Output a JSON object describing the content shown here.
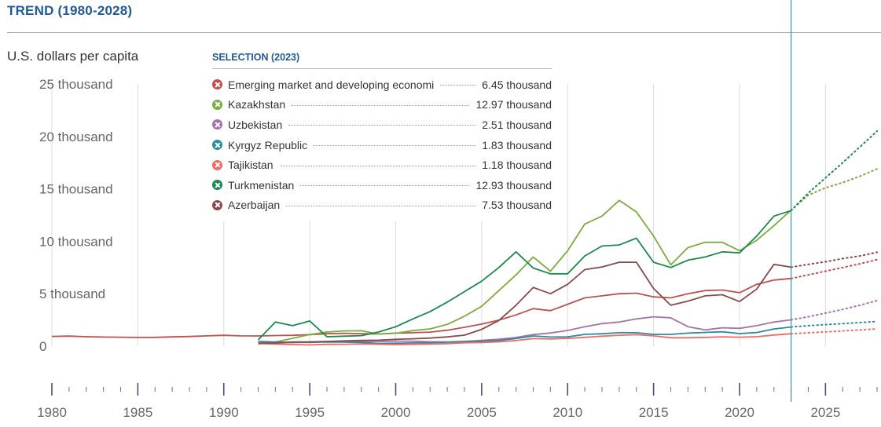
{
  "header": {
    "title": "TREND (1980-2028)"
  },
  "legend": {
    "title": "SELECTION (2023)"
  },
  "chart_data": {
    "type": "line",
    "ylabel": "U.S. dollars per capita",
    "xlim": [
      1980,
      2028
    ],
    "ylim": [
      0,
      25000
    ],
    "x_ticks": [
      1980,
      1985,
      1990,
      1995,
      2000,
      2005,
      2010,
      2015,
      2020,
      2025
    ],
    "y_ticks": [
      {
        "value": 0,
        "label": "0"
      },
      {
        "value": 5000,
        "label": "5 thousand"
      },
      {
        "value": 10000,
        "label": "10 thousand"
      },
      {
        "value": 15000,
        "label": "15 thousand"
      },
      {
        "value": 20000,
        "label": "20 thousand"
      },
      {
        "value": 25000,
        "label": "25 thousand"
      }
    ],
    "grid": "vertical",
    "legend_position": "top-center",
    "projection_start": 2023,
    "series": [
      {
        "name": "Emerging market and developing economi",
        "legend_value": "6.45 thousand",
        "color": "#c0504d",
        "x": [
          1980,
          1981,
          1982,
          1983,
          1984,
          1985,
          1986,
          1987,
          1988,
          1989,
          1990,
          1991,
          1992,
          1993,
          1994,
          1995,
          1996,
          1997,
          1998,
          1999,
          2000,
          2001,
          2002,
          2003,
          2004,
          2005,
          2006,
          2007,
          2008,
          2009,
          2010,
          2011,
          2012,
          2013,
          2014,
          2015,
          2016,
          2017,
          2018,
          2019,
          2020,
          2021,
          2022,
          2023
        ],
        "values": [
          930,
          960,
          900,
          870,
          850,
          830,
          840,
          880,
          920,
          980,
          1030,
          980,
          970,
          1010,
          1030,
          1100,
          1180,
          1230,
          1180,
          1160,
          1240,
          1280,
          1340,
          1520,
          1800,
          2100,
          2480,
          2980,
          3580,
          3380,
          4000,
          4600,
          4800,
          5000,
          5050,
          4700,
          4600,
          5000,
          5300,
          5350,
          5100,
          5900,
          6300,
          6450
        ],
        "proj_x": [
          2023,
          2024,
          2025,
          2026,
          2027,
          2028
        ],
        "proj_values": [
          6450,
          6800,
          7150,
          7500,
          7850,
          8250
        ]
      },
      {
        "name": "Kazakhstan",
        "legend_value": "12.97 thousand",
        "color": "#7aad3f",
        "x": [
          1992,
          1993,
          1994,
          1995,
          1996,
          1997,
          1998,
          1999,
          2000,
          2001,
          2002,
          2003,
          2004,
          2005,
          2006,
          2007,
          2008,
          2009,
          2010,
          2011,
          2012,
          2013,
          2014,
          2015,
          2016,
          2017,
          2018,
          2019,
          2020,
          2021,
          2022,
          2023
        ],
        "values": [
          200,
          400,
          750,
          1100,
          1350,
          1450,
          1470,
          1150,
          1230,
          1480,
          1650,
          2070,
          2850,
          3800,
          5300,
          6800,
          8500,
          7150,
          9100,
          11650,
          12400,
          13900,
          12800,
          10500,
          7750,
          9400,
          9900,
          9900,
          9100,
          10100,
          11500,
          12970
        ],
        "proj_x": [
          2023,
          2024,
          2025,
          2026,
          2027,
          2028
        ],
        "proj_values": [
          12970,
          14400,
          15100,
          15600,
          16200,
          16900
        ]
      },
      {
        "name": "Uzbekistan",
        "legend_value": "2.51 thousand",
        "color": "#a673a8",
        "x": [
          1992,
          1993,
          1994,
          1995,
          1996,
          1997,
          1998,
          1999,
          2000,
          2001,
          2002,
          2003,
          2004,
          2005,
          2006,
          2007,
          2008,
          2009,
          2010,
          2011,
          2012,
          2013,
          2014,
          2015,
          2016,
          2017,
          2018,
          2019,
          2020,
          2021,
          2022,
          2023
        ],
        "values": [
          250,
          300,
          350,
          400,
          450,
          450,
          450,
          450,
          480,
          470,
          420,
          400,
          460,
          550,
          660,
          830,
          1100,
          1260,
          1500,
          1850,
          2150,
          2300,
          2600,
          2800,
          2700,
          1860,
          1550,
          1750,
          1700,
          1950,
          2300,
          2510
        ],
        "proj_x": [
          2023,
          2024,
          2025,
          2026,
          2027,
          2028
        ],
        "proj_values": [
          2510,
          2800,
          3150,
          3500,
          3900,
          4350
        ]
      },
      {
        "name": "Kyrgyz Republic",
        "legend_value": "1.83 thousand",
        "color": "#2e8aa0",
        "x": [
          1992,
          1993,
          1994,
          1995,
          1996,
          1997,
          1998,
          1999,
          2000,
          2001,
          2002,
          2003,
          2004,
          2005,
          2006,
          2007,
          2008,
          2009,
          2010,
          2011,
          2012,
          2013,
          2014,
          2015,
          2016,
          2017,
          2018,
          2019,
          2020,
          2021,
          2022,
          2023
        ],
        "values": [
          450,
          400,
          350,
          360,
          400,
          380,
          350,
          260,
          280,
          310,
          320,
          380,
          430,
          480,
          540,
          720,
          970,
          870,
          880,
          1120,
          1180,
          1280,
          1280,
          1120,
          1120,
          1240,
          1310,
          1370,
          1200,
          1300,
          1640,
          1830
        ],
        "proj_x": [
          2023,
          2024,
          2025,
          2026,
          2027,
          2028
        ],
        "proj_values": [
          1830,
          1950,
          2050,
          2150,
          2250,
          2350
        ]
      },
      {
        "name": "Tajikistan",
        "legend_value": "1.18 thousand",
        "color": "#ee6b63",
        "x": [
          1992,
          1993,
          1994,
          1995,
          1996,
          1997,
          1998,
          1999,
          2000,
          2001,
          2002,
          2003,
          2004,
          2005,
          2006,
          2007,
          2008,
          2009,
          2010,
          2011,
          2012,
          2013,
          2014,
          2015,
          2016,
          2017,
          2018,
          2019,
          2020,
          2021,
          2022,
          2023
        ],
        "values": [
          250,
          200,
          150,
          120,
          170,
          180,
          220,
          180,
          150,
          170,
          200,
          240,
          320,
          350,
          410,
          530,
          720,
          680,
          740,
          840,
          950,
          1040,
          1100,
          980,
          800,
          800,
          830,
          890,
          850,
          900,
          1060,
          1180
        ],
        "proj_x": [
          2023,
          2024,
          2025,
          2026,
          2027,
          2028
        ],
        "proj_values": [
          1180,
          1270,
          1360,
          1450,
          1550,
          1650
        ]
      },
      {
        "name": "Turkmenistan",
        "legend_value": "12.93 thousand",
        "color": "#1a8a4c",
        "x": [
          1992,
          1993,
          1994,
          1995,
          1996,
          1997,
          1998,
          1999,
          2000,
          2001,
          2002,
          2003,
          2004,
          2005,
          2006,
          2007,
          2008,
          2009,
          2010,
          2011,
          2012,
          2013,
          2014,
          2015,
          2016,
          2017,
          2018,
          2019,
          2020,
          2021,
          2022,
          2023
        ],
        "values": [
          600,
          2300,
          1950,
          2400,
          900,
          950,
          1000,
          1350,
          1850,
          2600,
          3300,
          4200,
          5200,
          6200,
          7500,
          9000,
          7450,
          6900,
          6900,
          8600,
          9550,
          9650,
          10300,
          8000,
          7500,
          8200,
          8500,
          9000,
          8900,
          10500,
          12400,
          12930
        ],
        "proj_x": [
          2023,
          2024,
          2025,
          2026,
          2027,
          2028
        ],
        "proj_values": [
          12930,
          14600,
          16050,
          17500,
          19000,
          20500
        ]
      },
      {
        "name": "Azerbaijan",
        "legend_value": "7.53 thousand",
        "color": "#8b4a4a",
        "x": [
          1992,
          1993,
          1994,
          1995,
          1996,
          1997,
          1998,
          1999,
          2000,
          2001,
          2002,
          2003,
          2004,
          2005,
          2006,
          2007,
          2008,
          2009,
          2010,
          2011,
          2012,
          2013,
          2014,
          2015,
          2016,
          2017,
          2018,
          2019,
          2020,
          2021,
          2022,
          2023
        ],
        "values": [
          300,
          300,
          400,
          400,
          450,
          500,
          550,
          570,
          650,
          700,
          770,
          880,
          1050,
          1600,
          2450,
          3900,
          5600,
          5000,
          5900,
          7300,
          7550,
          8000,
          8000,
          5500,
          3900,
          4300,
          4800,
          4900,
          4250,
          5450,
          7800,
          7530
        ],
        "proj_x": [
          2023,
          2024,
          2025,
          2026,
          2027,
          2028
        ],
        "proj_values": [
          7530,
          7800,
          8050,
          8350,
          8600,
          8950
        ]
      }
    ]
  }
}
